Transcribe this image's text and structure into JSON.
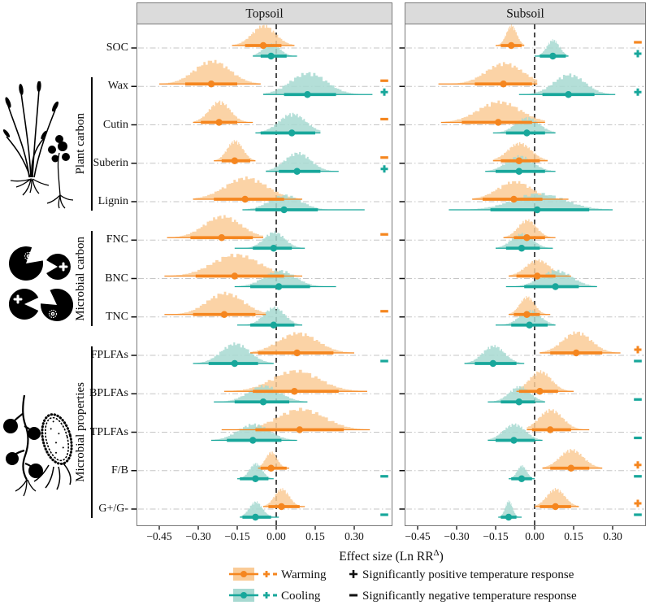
{
  "colors": {
    "warming": "#F5861F",
    "warming_light": "#FACB97",
    "cooling": "#18A79B",
    "cooling_light": "#A7D9D1",
    "header_bg": "#DBDBDB",
    "panel_border": "#7A7A7A",
    "grid": "#C6C6C6",
    "zero_line": "#111111",
    "text": "#111111"
  },
  "icons": {
    "left_icon_1": "plant-illustration-icon",
    "left_icon_2": "microbial-carbon-pacman-icon",
    "left_icon_3": "fungus-and-bacterium-icon",
    "legend_key_warming": "warming-interval-key-icon",
    "legend_key_cooling": "cooling-interval-key-icon",
    "legend_plus": "plus-symbol-icon",
    "legend_minus": "minus-symbol-icon"
  },
  "axis": {
    "tick_values": [
      -0.45,
      -0.3,
      -0.15,
      0.0,
      0.15,
      0.3
    ],
    "tick_labels": [
      "−0.45",
      "−0.30",
      "−0.15",
      "0.00",
      "0.15",
      "0.30"
    ],
    "xlabel_main": "Effect size (Ln RR",
    "xlabel_sup": "Δ",
    "xlabel_close": ")"
  },
  "groups": [
    {
      "label": "Plant carbon",
      "from_row": 1,
      "to_row": 4
    },
    {
      "label": "Microbial carbon",
      "from_row": 5,
      "to_row": 7
    },
    {
      "label": "Microbial properties",
      "from_row": 8,
      "to_row": 12
    }
  ],
  "legend": {
    "warming_label": "Warming",
    "cooling_label": "Cooling",
    "positive_label": "Significantly positive temperature response",
    "negative_label": "Significantly negative temperature response"
  },
  "chart_data": {
    "type": "ridgeline",
    "x_unit": "Effect size (Ln RR^Δ)",
    "categories": [
      "SOC",
      "Wax",
      "Cutin",
      "Suberin",
      "Lignin",
      "FNC",
      "BNC",
      "TNC",
      "FPLFAs",
      "BPLFAs",
      "TPLFAs",
      "F/B",
      "G+/G-"
    ],
    "series_names": [
      "Warming",
      "Cooling"
    ],
    "panels": [
      {
        "name": "Topsoil",
        "xlim": [
          -0.5375,
          0.4469
        ],
        "rows": [
          {
            "warming": {
              "mean": -0.05,
              "ci": [
                -0.12,
                0.02
              ],
              "range": [
                -0.17,
                0.07
              ],
              "sd": 0.045,
              "h": 26,
              "sig": null
            },
            "cooling": {
              "mean": -0.02,
              "ci": [
                -0.06,
                0.04
              ],
              "range": [
                -0.09,
                0.08
              ],
              "sd": 0.032,
              "h": 16,
              "sig": null
            }
          },
          {
            "warming": {
              "mean": -0.25,
              "ci": [
                -0.35,
                -0.15
              ],
              "range": [
                -0.45,
                -0.06
              ],
              "sd": 0.068,
              "h": 30,
              "sig": "-"
            },
            "cooling": {
              "mean": 0.12,
              "ci": [
                0.03,
                0.23
              ],
              "range": [
                -0.05,
                0.37
              ],
              "sd": 0.07,
              "h": 28,
              "sig": "+"
            }
          },
          {
            "warming": {
              "mean": -0.22,
              "ci": [
                -0.29,
                -0.15
              ],
              "range": [
                -0.32,
                -0.09
              ],
              "sd": 0.04,
              "h": 27,
              "sig": "-"
            },
            "cooling": {
              "mean": 0.06,
              "ci": [
                -0.06,
                0.15
              ],
              "range": [
                -0.08,
                0.17
              ],
              "sd": 0.052,
              "h": 25,
              "sig": null
            }
          },
          {
            "warming": {
              "mean": -0.16,
              "ci": [
                -0.21,
                -0.1
              ],
              "range": [
                -0.24,
                -0.08
              ],
              "sd": 0.03,
              "h": 26,
              "sig": "-"
            },
            "cooling": {
              "mean": 0.08,
              "ci": [
                0.01,
                0.17
              ],
              "range": [
                -0.04,
                0.24
              ],
              "sd": 0.05,
              "h": 24,
              "sig": "+"
            }
          },
          {
            "warming": {
              "mean": -0.12,
              "ci": [
                -0.24,
                0.03
              ],
              "range": [
                -0.32,
                0.1
              ],
              "sd": 0.08,
              "h": 28,
              "sig": null
            },
            "cooling": {
              "mean": 0.03,
              "ci": [
                -0.08,
                0.16
              ],
              "range": [
                -0.13,
                0.34
              ],
              "sd": 0.06,
              "h": 19,
              "sig": null
            }
          },
          {
            "warming": {
              "mean": -0.21,
              "ci": [
                -0.33,
                -0.09
              ],
              "range": [
                -0.42,
                -0.05
              ],
              "sd": 0.07,
              "h": 28,
              "sig": "-"
            },
            "cooling": {
              "mean": -0.01,
              "ci": [
                -0.09,
                0.06
              ],
              "range": [
                -0.16,
                0.11
              ],
              "sd": 0.04,
              "h": 21,
              "sig": null
            }
          },
          {
            "warming": {
              "mean": -0.16,
              "ci": [
                -0.31,
                0.03
              ],
              "range": [
                -0.43,
                0.1
              ],
              "sd": 0.09,
              "h": 28,
              "sig": null
            },
            "cooling": {
              "mean": 0.01,
              "ci": [
                -0.1,
                0.13
              ],
              "range": [
                -0.16,
                0.23
              ],
              "sd": 0.06,
              "h": 21,
              "sig": null
            }
          },
          {
            "warming": {
              "mean": -0.2,
              "ci": [
                -0.32,
                -0.08
              ],
              "range": [
                -0.43,
                -0.04
              ],
              "sd": 0.07,
              "h": 28,
              "sig": "-"
            },
            "cooling": {
              "mean": -0.01,
              "ci": [
                -0.1,
                0.07
              ],
              "range": [
                -0.15,
                0.1
              ],
              "sd": 0.04,
              "h": 23,
              "sig": null
            }
          },
          {
            "warming": {
              "mean": 0.08,
              "ci": [
                -0.07,
                0.22
              ],
              "range": [
                -0.1,
                0.3
              ],
              "sd": 0.075,
              "h": 26,
              "sig": null
            },
            "cooling": {
              "mean": -0.16,
              "ci": [
                -0.26,
                -0.07
              ],
              "range": [
                -0.32,
                -0.01
              ],
              "sd": 0.055,
              "h": 26,
              "sig": "-"
            }
          },
          {
            "warming": {
              "mean": 0.07,
              "ci": [
                -0.09,
                0.24
              ],
              "range": [
                -0.2,
                0.35
              ],
              "sd": 0.09,
              "h": 27,
              "sig": null
            },
            "cooling": {
              "mean": -0.05,
              "ci": [
                -0.16,
                0.05
              ],
              "range": [
                -0.24,
                0.12
              ],
              "sd": 0.06,
              "h": 21,
              "sig": null
            }
          },
          {
            "warming": {
              "mean": 0.09,
              "ci": [
                -0.08,
                0.26
              ],
              "range": [
                -0.21,
                0.36
              ],
              "sd": 0.09,
              "h": 27,
              "sig": null
            },
            "cooling": {
              "mean": -0.09,
              "ci": [
                -0.19,
                0.02
              ],
              "range": [
                -0.25,
                0.08
              ],
              "sd": 0.06,
              "h": 21,
              "sig": null
            }
          },
          {
            "warming": {
              "mean": -0.02,
              "ci": [
                -0.06,
                0.04
              ],
              "range": [
                -0.07,
                0.05
              ],
              "sd": 0.022,
              "h": 21,
              "sig": null
            },
            "cooling": {
              "mean": -0.08,
              "ci": [
                -0.14,
                -0.03
              ],
              "range": [
                -0.15,
                -0.01
              ],
              "sd": 0.024,
              "h": 20,
              "sig": "-"
            }
          },
          {
            "warming": {
              "mean": 0.02,
              "ci": [
                -0.03,
                0.09
              ],
              "range": [
                -0.05,
                0.11
              ],
              "sd": 0.028,
              "h": 23,
              "sig": null
            },
            "cooling": {
              "mean": -0.08,
              "ci": [
                -0.13,
                -0.02
              ],
              "range": [
                -0.14,
                0.01
              ],
              "sd": 0.025,
              "h": 20,
              "sig": "-"
            }
          }
        ]
      },
      {
        "name": "Subsoil",
        "xlim": [
          -0.5,
          0.4281
        ],
        "rows": [
          {
            "warming": {
              "mean": -0.09,
              "ci": [
                -0.13,
                -0.05
              ],
              "range": [
                -0.15,
                -0.04
              ],
              "sd": 0.02,
              "h": 26,
              "sig": "-"
            },
            "cooling": {
              "mean": 0.07,
              "ci": [
                0.02,
                0.12
              ],
              "range": [
                0.0,
                0.13
              ],
              "sd": 0.024,
              "h": 21,
              "sig": "+"
            }
          },
          {
            "warming": {
              "mean": -0.12,
              "ci": [
                -0.23,
                -0.01
              ],
              "range": [
                -0.37,
                0.01
              ],
              "sd": 0.07,
              "h": 27,
              "sig": null
            },
            "cooling": {
              "mean": 0.13,
              "ci": [
                0.03,
                0.23
              ],
              "range": [
                -0.06,
                0.31
              ],
              "sd": 0.06,
              "h": 26,
              "sig": "+"
            }
          },
          {
            "warming": {
              "mean": -0.14,
              "ci": [
                -0.28,
                -0.01
              ],
              "range": [
                -0.36,
                0.04
              ],
              "sd": 0.08,
              "h": 27,
              "sig": null
            },
            "cooling": {
              "mean": -0.03,
              "ci": [
                -0.11,
                0.04
              ],
              "range": [
                -0.16,
                0.08
              ],
              "sd": 0.045,
              "h": 20,
              "sig": null
            }
          },
          {
            "warming": {
              "mean": -0.06,
              "ci": [
                -0.13,
                0.02
              ],
              "range": [
                -0.16,
                0.05
              ],
              "sd": 0.045,
              "h": 23,
              "sig": null
            },
            "cooling": {
              "mean": -0.06,
              "ci": [
                -0.15,
                0.04
              ],
              "range": [
                -0.19,
                0.08
              ],
              "sd": 0.05,
              "h": 20,
              "sig": null
            }
          },
          {
            "warming": {
              "mean": -0.08,
              "ci": [
                -0.2,
                0.03
              ],
              "range": [
                -0.24,
                0.13
              ],
              "sd": 0.065,
              "h": 23,
              "sig": null
            },
            "cooling": {
              "mean": 0.01,
              "ci": [
                -0.17,
                0.21
              ],
              "range": [
                -0.33,
                0.3
              ],
              "sd": 0.1,
              "h": 21,
              "sig": null
            }
          },
          {
            "warming": {
              "mean": -0.03,
              "ci": [
                -0.08,
                0.04
              ],
              "range": [
                -0.12,
                0.08
              ],
              "sd": 0.035,
              "h": 23,
              "sig": null
            },
            "cooling": {
              "mean": -0.05,
              "ci": [
                -0.11,
                0.02
              ],
              "range": [
                -0.15,
                0.07
              ],
              "sd": 0.04,
              "h": 19,
              "sig": null
            }
          },
          {
            "warming": {
              "mean": 0.01,
              "ci": [
                -0.07,
                0.08
              ],
              "range": [
                -0.1,
                0.14
              ],
              "sd": 0.045,
              "h": 21,
              "sig": null
            },
            "cooling": {
              "mean": 0.08,
              "ci": [
                -0.04,
                0.17
              ],
              "range": [
                -0.11,
                0.24
              ],
              "sd": 0.06,
              "h": 21,
              "sig": null
            }
          },
          {
            "warming": {
              "mean": -0.03,
              "ci": [
                -0.08,
                0.02
              ],
              "range": [
                -0.1,
                0.06
              ],
              "sd": 0.028,
              "h": 23,
              "sig": null
            },
            "cooling": {
              "mean": -0.02,
              "ci": [
                -0.09,
                0.05
              ],
              "range": [
                -0.15,
                0.08
              ],
              "sd": 0.04,
              "h": 19,
              "sig": null
            }
          },
          {
            "warming": {
              "mean": 0.16,
              "ci": [
                0.06,
                0.26
              ],
              "range": [
                0.02,
                0.33
              ],
              "sd": 0.055,
              "h": 27,
              "sig": "+"
            },
            "cooling": {
              "mean": -0.16,
              "ci": [
                -0.23,
                -0.07
              ],
              "range": [
                -0.27,
                -0.04
              ],
              "sd": 0.042,
              "h": 23,
              "sig": "-"
            }
          },
          {
            "warming": {
              "mean": 0.02,
              "ci": [
                -0.06,
                0.09
              ],
              "range": [
                -0.07,
                0.15
              ],
              "sd": 0.042,
              "h": 26,
              "sig": null
            },
            "cooling": {
              "mean": -0.06,
              "ci": [
                -0.13,
                0.0
              ],
              "range": [
                -0.18,
                0.04
              ],
              "sd": 0.04,
              "h": 20,
              "sig": "-"
            }
          },
          {
            "warming": {
              "mean": 0.06,
              "ci": [
                -0.01,
                0.14
              ],
              "range": [
                -0.03,
                0.21
              ],
              "sd": 0.045,
              "h": 26,
              "sig": null
            },
            "cooling": {
              "mean": -0.08,
              "ci": [
                -0.15,
                0.0
              ],
              "range": [
                -0.18,
                0.03
              ],
              "sd": 0.042,
              "h": 21,
              "sig": "-"
            }
          },
          {
            "warming": {
              "mean": 0.14,
              "ci": [
                0.06,
                0.21
              ],
              "range": [
                0.03,
                0.26
              ],
              "sd": 0.045,
              "h": 24,
              "sig": "+"
            },
            "cooling": {
              "mean": -0.05,
              "ci": [
                -0.09,
                -0.01
              ],
              "range": [
                -0.1,
                0.0
              ],
              "sd": 0.018,
              "h": 17,
              "sig": "-"
            }
          },
          {
            "warming": {
              "mean": 0.08,
              "ci": [
                0.02,
                0.14
              ],
              "range": [
                0.0,
                0.17
              ],
              "sd": 0.034,
              "h": 23,
              "sig": "+"
            },
            "cooling": {
              "mean": -0.1,
              "ci": [
                -0.13,
                -0.07
              ],
              "range": [
                -0.14,
                -0.05
              ],
              "sd": 0.014,
              "h": 21,
              "sig": "-"
            }
          }
        ]
      }
    ]
  }
}
